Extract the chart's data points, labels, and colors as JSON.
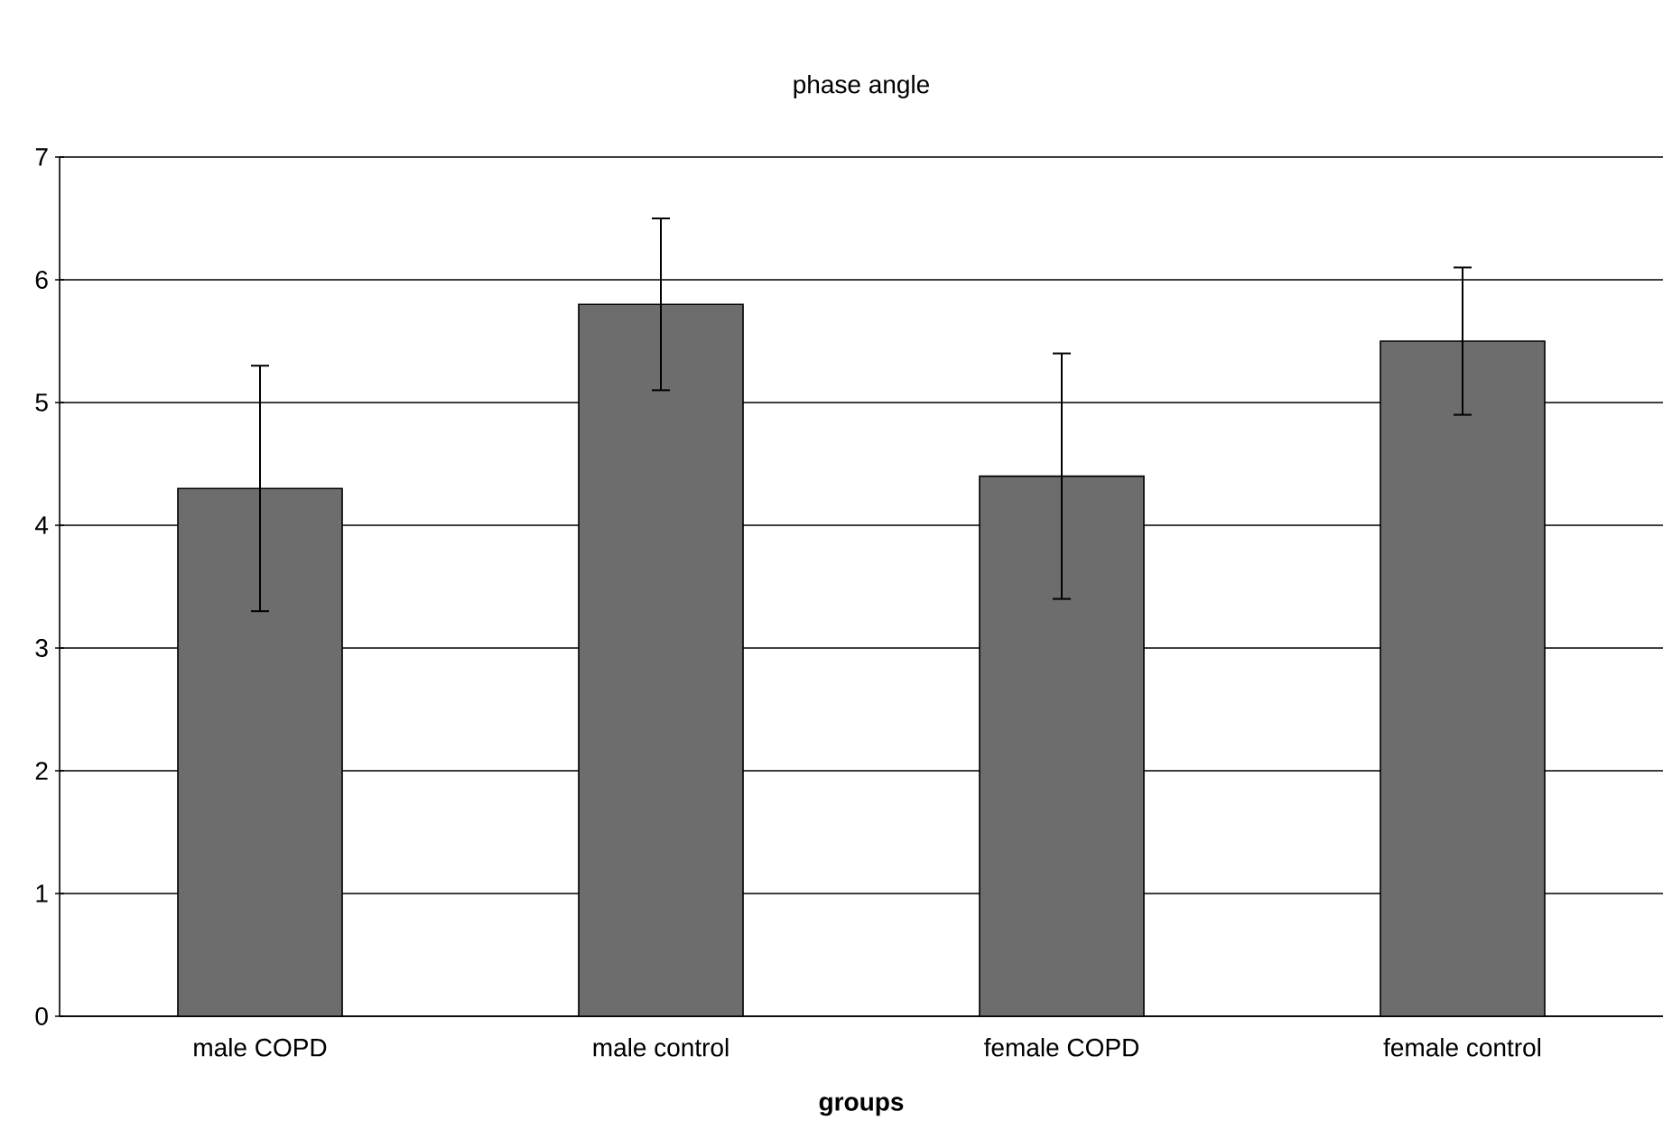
{
  "chart_data": {
    "type": "bar",
    "title": "phase angle",
    "xlabel": "groups",
    "categories": [
      "male COPD",
      "male control",
      "female COPD",
      "female control"
    ],
    "values": [
      4.3,
      5.8,
      4.4,
      5.5
    ],
    "errors": [
      1.0,
      0.7,
      1.0,
      0.6
    ],
    "color": "#6d6d6d",
    "ylim": [
      0,
      7
    ],
    "yticks": [
      0,
      1,
      2,
      3,
      4,
      5,
      6,
      7
    ],
    "grid": "y"
  }
}
